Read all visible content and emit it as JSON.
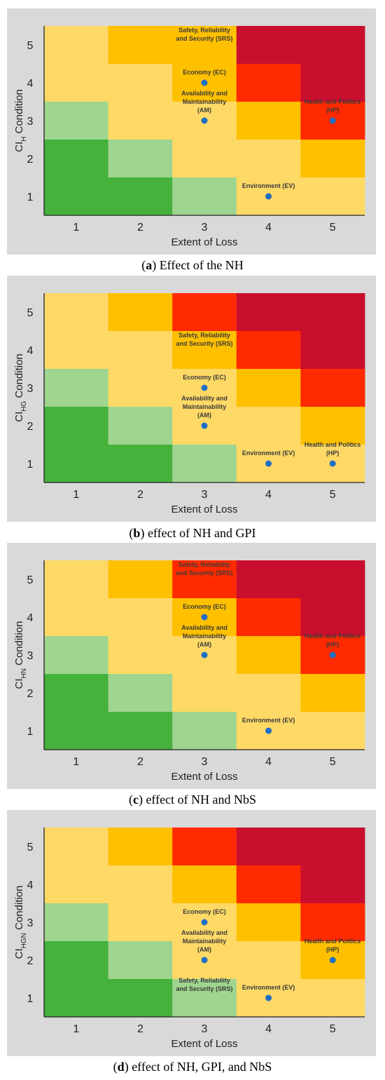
{
  "colors": {
    "panel_bg": "#d9d9d9",
    "dark_green": "#44b23b",
    "light_green": "#9fd58f",
    "yellow": "#ffd966",
    "orange": "#ffc000",
    "red": "#ff2a00",
    "crimson": "#c8102e",
    "point": "#1f6fc5"
  },
  "chart_data": [
    {
      "panel_id": "a",
      "type": "heatmap",
      "caption_letter": "a",
      "caption_text": " Effect of the NH",
      "xlabel": "Extent of Loss",
      "ylabel_main": "CI",
      "ylabel_sub": "H",
      "ylabel_rest": " Condition",
      "x_ticks": [
        "1",
        "2",
        "3",
        "4",
        "5"
      ],
      "y_ticks": [
        "1",
        "2",
        "3",
        "4",
        "5"
      ],
      "grid_rows_top_to_bottom": [
        [
          "yellow",
          "orange",
          "orange",
          "crimson",
          "crimson"
        ],
        [
          "yellow",
          "yellow",
          "orange",
          "red",
          "crimson"
        ],
        [
          "light_green",
          "yellow",
          "yellow",
          "orange",
          "red"
        ],
        [
          "dark_green",
          "light_green",
          "yellow",
          "yellow",
          "orange"
        ],
        [
          "dark_green",
          "dark_green",
          "light_green",
          "yellow",
          "yellow"
        ]
      ],
      "points": [
        {
          "x": 3,
          "y": 4,
          "label": "Economy (EC)",
          "label_lines": [
            "Economy (EC)"
          ],
          "label_pos": "above"
        },
        {
          "x": 3,
          "y": 3,
          "label": "Availability and Maintainability (AM)",
          "label_lines": [
            "Availability and",
            "Maintainability",
            "(AM)"
          ],
          "label_pos": "above"
        },
        {
          "x": 4,
          "y": 1,
          "label": "Environment (EV)",
          "label_lines": [
            "Environment (EV)"
          ],
          "label_pos": "above"
        },
        {
          "x": 5,
          "y": 3,
          "label": "Health and Politics (HP)",
          "label_lines": [
            "Health and Politics",
            "(HP)"
          ],
          "label_pos": "above"
        }
      ],
      "extra_labels": [
        {
          "x": 3,
          "y": 5,
          "lines": [
            "Safety, Reliability",
            "and Security (SRS)"
          ]
        }
      ]
    },
    {
      "panel_id": "b",
      "type": "heatmap",
      "caption_letter": "b",
      "caption_text": " effect of NH and GPI",
      "xlabel": "Extent of Loss",
      "ylabel_main": "CI",
      "ylabel_sub": "HG",
      "ylabel_rest": " Condition",
      "x_ticks": [
        "1",
        "2",
        "3",
        "4",
        "5"
      ],
      "y_ticks": [
        "1",
        "2",
        "3",
        "4",
        "5"
      ],
      "grid_rows_top_to_bottom": [
        [
          "yellow",
          "orange",
          "red",
          "crimson",
          "crimson"
        ],
        [
          "yellow",
          "yellow",
          "orange",
          "red",
          "crimson"
        ],
        [
          "light_green",
          "yellow",
          "yellow",
          "orange",
          "red"
        ],
        [
          "dark_green",
          "light_green",
          "yellow",
          "yellow",
          "orange"
        ],
        [
          "dark_green",
          "dark_green",
          "light_green",
          "yellow",
          "yellow"
        ]
      ],
      "points": [
        {
          "x": 3,
          "y": 3,
          "label": "Economy (EC)",
          "label_lines": [
            "Economy (EC)"
          ],
          "label_pos": "above"
        },
        {
          "x": 3,
          "y": 2,
          "label": "Availability and Maintainability (AM)",
          "label_lines": [
            "Availability and",
            "Maintainability",
            "(AM)"
          ],
          "label_pos": "above"
        },
        {
          "x": 4,
          "y": 1,
          "label": "Environment (EV)",
          "label_lines": [
            "Environment (EV)"
          ],
          "label_pos": "above"
        },
        {
          "x": 5,
          "y": 1,
          "label": "Health and Politics (HP)",
          "label_lines": [
            "Health and Politics",
            "(HP)"
          ],
          "label_pos": "above"
        }
      ],
      "extra_labels": [
        {
          "x": 3,
          "y": 4,
          "lines": [
            "Safety, Reliability",
            "and Security (SRS)"
          ]
        }
      ]
    },
    {
      "panel_id": "c",
      "type": "heatmap",
      "caption_letter": "c",
      "caption_text": " effect of NH and NbS",
      "xlabel": "Extent of Loss",
      "ylabel_main": "CI",
      "ylabel_sub": "HN",
      "ylabel_rest": " Condition",
      "x_ticks": [
        "1",
        "2",
        "3",
        "4",
        "5"
      ],
      "y_ticks": [
        "1",
        "2",
        "3",
        "4",
        "5"
      ],
      "grid_rows_top_to_bottom": [
        [
          "yellow",
          "orange",
          "red",
          "crimson",
          "crimson"
        ],
        [
          "yellow",
          "yellow",
          "orange",
          "red",
          "crimson"
        ],
        [
          "light_green",
          "yellow",
          "yellow",
          "orange",
          "red"
        ],
        [
          "dark_green",
          "light_green",
          "yellow",
          "yellow",
          "orange"
        ],
        [
          "dark_green",
          "dark_green",
          "light_green",
          "yellow",
          "yellow"
        ]
      ],
      "points": [
        {
          "x": 3,
          "y": 4,
          "label": "Economy (EC)",
          "label_lines": [
            "Economy (EC)"
          ],
          "label_pos": "above"
        },
        {
          "x": 3,
          "y": 3,
          "label": "Availability and Maintainability (AM)",
          "label_lines": [
            "Availability and",
            "Maintainability",
            "(AM)"
          ],
          "label_pos": "above"
        },
        {
          "x": 4,
          "y": 1,
          "label": "Environment (EV)",
          "label_lines": [
            "Environment (EV)"
          ],
          "label_pos": "above"
        },
        {
          "x": 5,
          "y": 3,
          "label": "Health and Politics (HP)",
          "label_lines": [
            "Health and Politics",
            "(HP)"
          ],
          "label_pos": "above"
        }
      ],
      "extra_labels": [
        {
          "x": 3,
          "y": 5,
          "lines": [
            "Safety, Reliability",
            "and Security (SRS)"
          ]
        }
      ]
    },
    {
      "panel_id": "d",
      "type": "heatmap",
      "caption_letter": "d",
      "caption_text": " effect of NH, GPI, and NbS",
      "xlabel": "Extent of Loss",
      "ylabel_main": "CI",
      "ylabel_sub": "HGN",
      "ylabel_rest": " Condition",
      "x_ticks": [
        "1",
        "2",
        "3",
        "4",
        "5"
      ],
      "y_ticks": [
        "1",
        "2",
        "3",
        "4",
        "5"
      ],
      "grid_rows_top_to_bottom": [
        [
          "yellow",
          "orange",
          "red",
          "crimson",
          "crimson"
        ],
        [
          "yellow",
          "yellow",
          "orange",
          "red",
          "crimson"
        ],
        [
          "light_green",
          "yellow",
          "yellow",
          "orange",
          "red"
        ],
        [
          "dark_green",
          "light_green",
          "yellow",
          "yellow",
          "orange"
        ],
        [
          "dark_green",
          "dark_green",
          "light_green",
          "yellow",
          "yellow"
        ]
      ],
      "points": [
        {
          "x": 3,
          "y": 3,
          "label": "Economy (EC)",
          "label_lines": [
            "Economy (EC)"
          ],
          "label_pos": "above"
        },
        {
          "x": 3,
          "y": 2,
          "label": "Availability and Maintainability (AM)",
          "label_lines": [
            "Availability and",
            "Maintainability",
            "(AM)"
          ],
          "label_pos": "above"
        },
        {
          "x": 4,
          "y": 1,
          "label": "Environment (EV)",
          "label_lines": [
            "Environment (EV)"
          ],
          "label_pos": "above"
        },
        {
          "x": 5,
          "y": 2,
          "label": "Health and Politics (HP)",
          "label_lines": [
            "Health and Politics",
            "(HP)"
          ],
          "label_pos": "above"
        }
      ],
      "extra_labels": [
        {
          "x": 3,
          "y": 1,
          "lines": [
            "Safety, Reliability",
            "and Security (SRS)"
          ],
          "offset": "upper"
        }
      ]
    }
  ]
}
